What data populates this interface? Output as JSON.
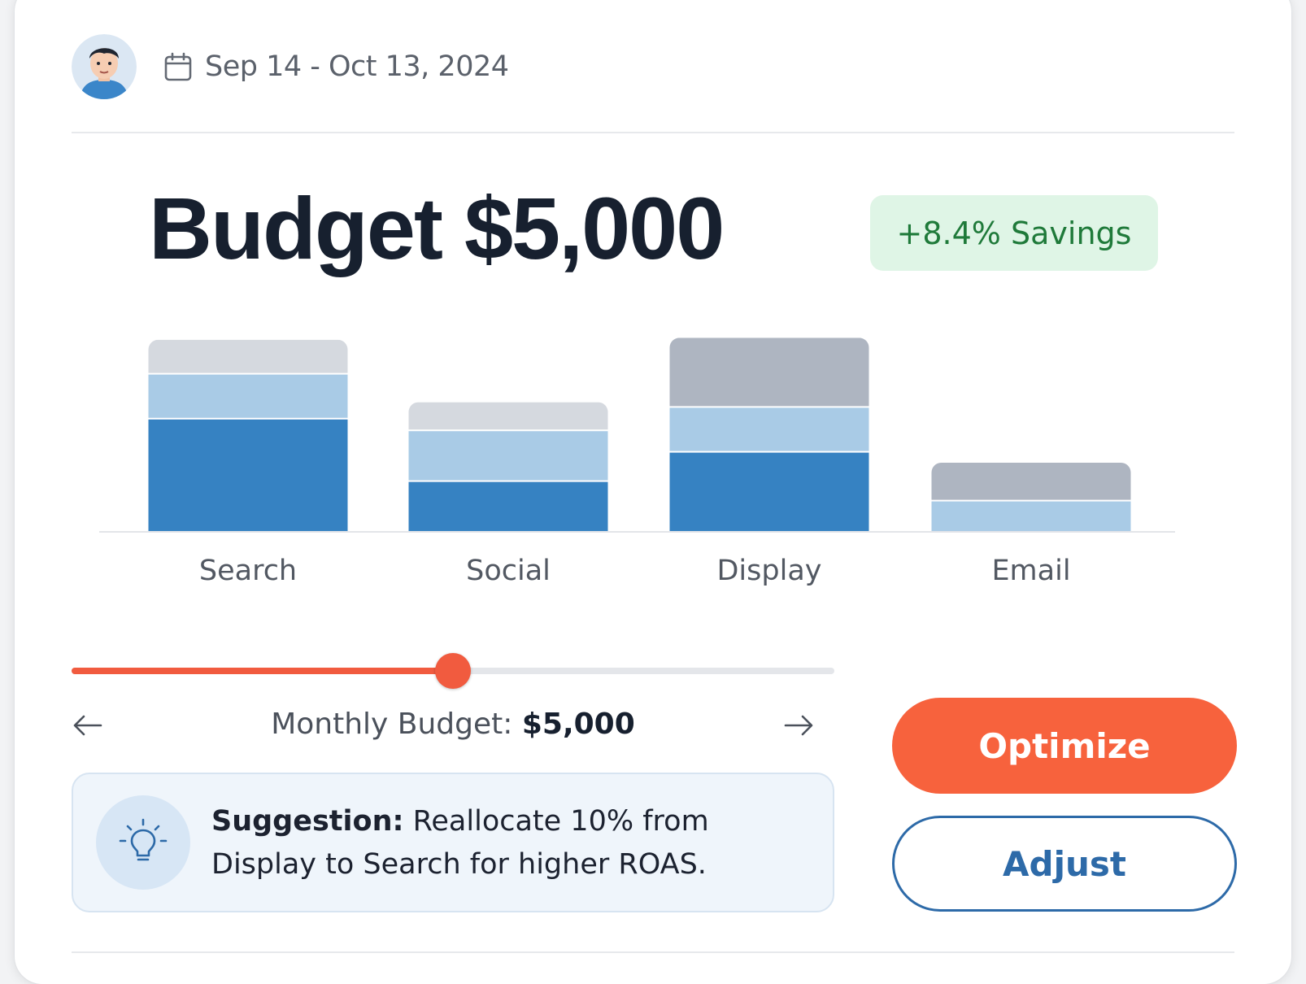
{
  "header": {
    "avatar_icon": "user-avatar",
    "calendar_icon": "calendar-icon",
    "date_range": "Sep 14 - Oct 13, 2024"
  },
  "budget": {
    "title": "Budget $5,000",
    "savings_badge": "+8.4% Savings"
  },
  "chart_data": {
    "type": "bar",
    "stacked": true,
    "categories": [
      "Search",
      "Social",
      "Display",
      "Email"
    ],
    "series": [
      {
        "color": "#3682c2",
        "values": [
          58,
          26,
          41,
          0
        ]
      },
      {
        "color": "#a9cbe6",
        "values": [
          23,
          26,
          23,
          16
        ]
      },
      {
        "color": "#d5d9df",
        "values": [
          17,
          14,
          0,
          0
        ]
      },
      {
        "color": "#aeb5c1",
        "values": [
          0,
          0,
          35,
          19
        ]
      }
    ],
    "ylim": [
      0,
      100
    ],
    "grid": false,
    "legend": "none"
  },
  "slider": {
    "value_fraction": 0.5
  },
  "monthly": {
    "label": "Monthly Budget:",
    "value": "$5,000",
    "prev_icon": "arrow-left-icon",
    "next_icon": "arrow-right-icon"
  },
  "suggestion": {
    "icon": "lightbulb-icon",
    "heading": "Suggestion:",
    "text": "Reallocate 10% from Display to Search for higher ROAS."
  },
  "actions": {
    "primary_label": "Optimize",
    "secondary_label": "Adjust"
  },
  "colors": {
    "accent": "#f7623d",
    "secondary": "#2d6aa8",
    "savings_bg": "#dff5e6",
    "savings_text": "#1f7a3a"
  }
}
